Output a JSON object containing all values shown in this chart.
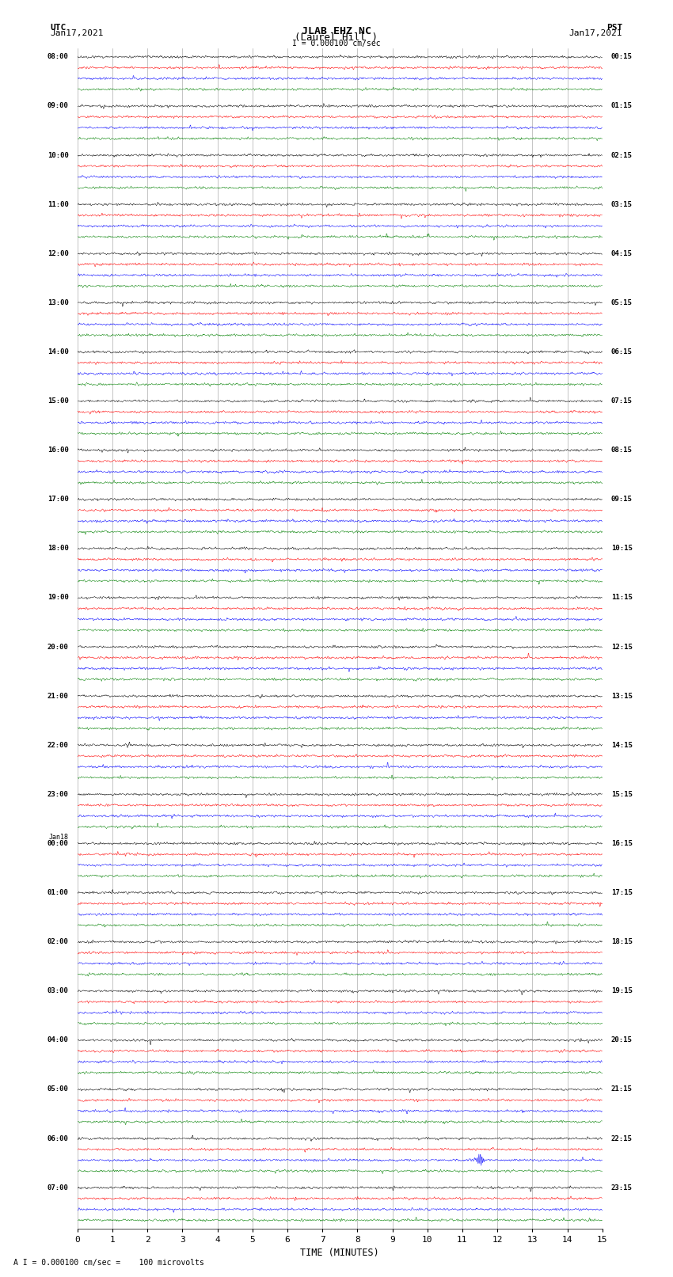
{
  "title_line1": "JLAB EHZ NC",
  "title_line2": "(Laurel Hill )",
  "scale_label": "I = 0.000100 cm/sec",
  "bottom_label": "A I = 0.000100 cm/sec =    100 microvolts",
  "xlabel": "TIME (MINUTES)",
  "left_header": "UTC",
  "left_date": "Jan17,2021",
  "right_header": "PST",
  "right_date": "Jan17,2021",
  "fig_width": 8.5,
  "fig_height": 16.13,
  "bg_color": "#ffffff",
  "trace_colors": [
    "black",
    "red",
    "blue",
    "green"
  ],
  "grid_color": "#999999",
  "num_minutes": 15,
  "noise_amplitude": 0.018,
  "utc_times": [
    "08:00",
    "09:00",
    "10:00",
    "11:00",
    "12:00",
    "13:00",
    "14:00",
    "15:00",
    "16:00",
    "17:00",
    "18:00",
    "19:00",
    "20:00",
    "21:00",
    "22:00",
    "23:00",
    "00:00",
    "01:00",
    "02:00",
    "03:00",
    "04:00",
    "05:00",
    "06:00",
    "07:00"
  ],
  "pst_times": [
    "00:15",
    "01:15",
    "02:15",
    "03:15",
    "04:15",
    "05:15",
    "06:15",
    "07:15",
    "08:15",
    "09:15",
    "10:15",
    "11:15",
    "12:15",
    "13:15",
    "14:15",
    "15:15",
    "16:15",
    "17:15",
    "18:15",
    "19:15",
    "20:15",
    "21:15",
    "22:15",
    "23:15"
  ],
  "jan18_row": 16,
  "earthquake_row": 22,
  "earthquake_minute": 11.5,
  "earthquake_amplitude": 0.12
}
